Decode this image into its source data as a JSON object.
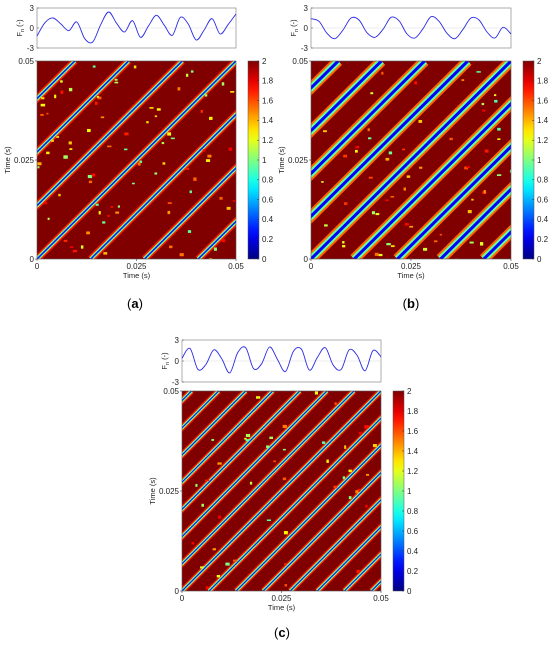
{
  "chart_data": [
    {
      "type": "heatmap",
      "panel_label": "(a)",
      "panel_label_parts": [
        "(",
        "a",
        ")"
      ],
      "signal": {
        "type": "line",
        "ylabel_main": "F",
        "ylabel_sub": "n",
        "ylabel_unit": "(-)",
        "ylim": [
          -3,
          3
        ],
        "yticks": [
          "3",
          "0",
          "-3"
        ],
        "x": [
          0,
          0.002,
          0.004,
          0.006,
          0.008,
          0.01,
          0.012,
          0.014,
          0.016,
          0.018,
          0.02,
          0.022,
          0.024,
          0.026,
          0.028,
          0.03,
          0.032,
          0.034,
          0.036,
          0.038,
          0.04,
          0.042,
          0.044,
          0.046,
          0.048,
          0.05
        ],
        "values": [
          -1.2,
          0.8,
          1.5,
          0.6,
          -0.4,
          0.9,
          -1.6,
          -2.1,
          0.5,
          2.4,
          0.7,
          -0.6,
          1.1,
          -1.4,
          0.3,
          1.9,
          0.4,
          -1.1,
          1.6,
          0.6,
          -1.8,
          -0.3,
          1.4,
          -0.9,
          0.5,
          2.1
        ]
      },
      "matrix": {
        "xlabel": "Time (s)",
        "ylabel": "Time (s)",
        "xlim": [
          0,
          0.05
        ],
        "ylim": [
          0,
          0.05
        ],
        "xticks": [
          "0",
          "0.025",
          "0.05"
        ],
        "yticks": [
          "0",
          "0.025",
          "0.05"
        ],
        "clim": [
          0,
          2
        ],
        "period": 0.0135,
        "pattern": "sparse"
      },
      "colorbar": {
        "ticks": [
          "0",
          "0.2",
          "0.4",
          "0.6",
          "0.8",
          "1",
          "1.2",
          "1.4",
          "1.6",
          "1.8",
          "2"
        ]
      }
    },
    {
      "type": "heatmap",
      "panel_label": "(b)",
      "panel_label_parts": [
        "(",
        "b",
        ")"
      ],
      "signal": {
        "type": "line",
        "ylabel_main": "F",
        "ylabel_sub": "n",
        "ylabel_unit": "(-)",
        "ylim": [
          -3,
          3
        ],
        "yticks": [
          "3",
          "0",
          "-3"
        ],
        "x": [
          0,
          0.002,
          0.004,
          0.006,
          0.008,
          0.01,
          0.012,
          0.014,
          0.016,
          0.018,
          0.02,
          0.022,
          0.024,
          0.026,
          0.028,
          0.03,
          0.032,
          0.034,
          0.036,
          0.038,
          0.04,
          0.042,
          0.044,
          0.046,
          0.048,
          0.05
        ],
        "values": [
          1.4,
          1.0,
          -0.8,
          -1.6,
          -0.3,
          1.5,
          1.2,
          -0.7,
          -1.4,
          -0.2,
          1.6,
          1.1,
          -0.9,
          -1.5,
          -0.1,
          1.7,
          1.0,
          -0.8,
          -1.6,
          -0.2,
          1.5,
          1.2,
          -0.6,
          -1.5,
          0.1,
          -0.9
        ]
      },
      "matrix": {
        "xlabel": "Time (s)",
        "ylabel": "Time (s)",
        "xlim": [
          0,
          0.05
        ],
        "ylim": [
          0,
          0.05
        ],
        "xticks": [
          "0",
          "0.025",
          "0.05"
        ],
        "yticks": [
          "0",
          "0.025",
          "0.05"
        ],
        "clim": [
          0,
          2
        ],
        "period": 0.0108,
        "pattern": "dense"
      },
      "colorbar": {
        "ticks": [
          "0",
          "0.2",
          "0.4",
          "0.6",
          "0.8",
          "1",
          "1.2",
          "1.4",
          "1.6",
          "1.8",
          "2"
        ]
      }
    },
    {
      "type": "heatmap",
      "panel_label": "(c)",
      "panel_label_parts": [
        "(",
        "c",
        ")"
      ],
      "signal": {
        "type": "line",
        "ylabel_main": "F",
        "ylabel_sub": "n",
        "ylabel_unit": "(-)",
        "ylim": [
          -3,
          3
        ],
        "yticks": [
          "3",
          "0",
          "-3"
        ],
        "x": [
          0,
          0.002,
          0.004,
          0.006,
          0.008,
          0.01,
          0.012,
          0.014,
          0.016,
          0.018,
          0.02,
          0.022,
          0.024,
          0.026,
          0.028,
          0.03,
          0.032,
          0.034,
          0.036,
          0.038,
          0.04,
          0.042,
          0.044,
          0.046,
          0.048,
          0.05
        ],
        "values": [
          0.4,
          1.8,
          -1.2,
          -0.5,
          1.6,
          0.3,
          -1.7,
          1.2,
          1.9,
          -1.1,
          -0.4,
          2.0,
          0.2,
          -1.5,
          1.4,
          1.7,
          -1.3,
          0.5,
          1.9,
          -0.6,
          -1.2,
          1.6,
          0.8,
          -1.4,
          1.5,
          0.6
        ]
      },
      "matrix": {
        "xlabel": "Time (s)",
        "ylabel": "Time (s)",
        "xlim": [
          0,
          0.05
        ],
        "ylim": [
          0,
          0.05
        ],
        "xticks": [
          "0",
          "0.025",
          "0.05"
        ],
        "yticks": [
          "0",
          "0.025",
          "0.05"
        ],
        "clim": [
          0,
          2
        ],
        "period": 0.0068,
        "pattern": "fine"
      },
      "colorbar": {
        "ticks": [
          "0",
          "0.2",
          "0.4",
          "0.6",
          "0.8",
          "1",
          "1.2",
          "1.4",
          "1.6",
          "1.8",
          "2"
        ]
      }
    }
  ]
}
